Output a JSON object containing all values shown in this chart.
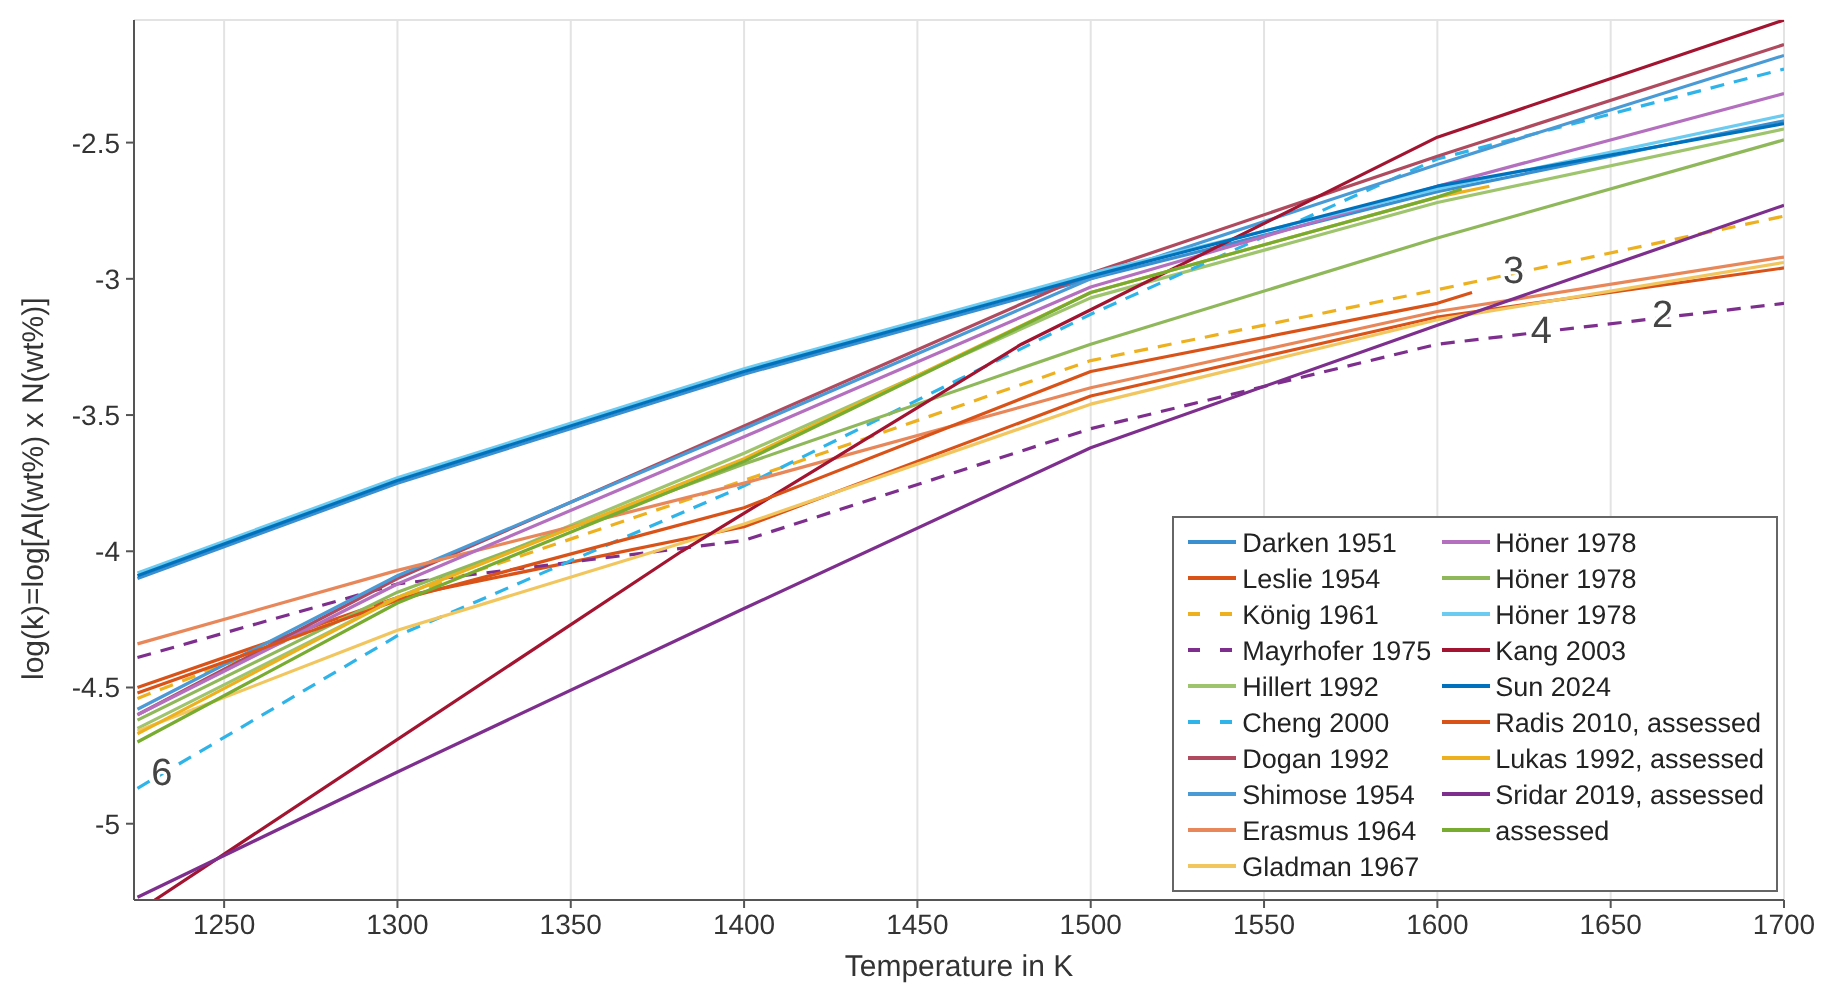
{
  "chart_data": {
    "type": "line",
    "xlabel": "Temperature in K",
    "ylabel": "log(k)=log[Al(wt%) x N(wt%)]",
    "xlim": [
      1224,
      1700
    ],
    "ylim": [
      -5.28,
      -2.05
    ],
    "xticks": [
      1250,
      1300,
      1350,
      1400,
      1450,
      1500,
      1550,
      1600,
      1650,
      1700
    ],
    "yticks": [
      -5,
      -4.5,
      -4,
      -3.5,
      -3,
      -2.5
    ],
    "grid": true,
    "legend": "bottom right",
    "marker": "none",
    "series": [
      {
        "name": "Darken 1951",
        "color": "#3a8fd0",
        "x": [
          1225,
          1300,
          1400,
          1500,
          1600,
          1700
        ],
        "values": [
          -4.1,
          -3.75,
          -3.35,
          -3.0,
          -2.68,
          -2.42
        ]
      },
      {
        "name": "Leslie 1954",
        "color": "#d95319",
        "x": [
          1225,
          1300,
          1400,
          1500,
          1600,
          1700
        ],
        "values": [
          -4.5,
          -4.17,
          -3.91,
          -3.43,
          -3.14,
          -2.96
        ]
      },
      {
        "name": "König 1961",
        "color": "#edb120",
        "line_style": "dashed",
        "x": [
          1225,
          1300,
          1400,
          1500,
          1600,
          1700
        ],
        "values": [
          -4.54,
          -4.17,
          -3.74,
          -3.3,
          -3.04,
          -2.77
        ]
      },
      {
        "name": "Mayrhofer 1975",
        "color": "#7e2f8e",
        "line_style": "dashed",
        "x": [
          1225,
          1300,
          1400,
          1500,
          1600,
          1700
        ],
        "values": [
          -4.39,
          -4.12,
          -3.96,
          -3.55,
          -3.24,
          -3.09
        ]
      },
      {
        "name": "Hillert 1992",
        "color": "#9fc46e",
        "x": [
          1225,
          1300,
          1400,
          1500,
          1600,
          1700
        ],
        "values": [
          -4.65,
          -4.17,
          -3.64,
          -3.07,
          -2.72,
          -2.45
        ]
      },
      {
        "name": "Cheng 2000",
        "color": "#2fb4ea",
        "line_style": "dashed",
        "x": [
          1225,
          1300,
          1400,
          1500,
          1600,
          1700
        ],
        "values": [
          -4.87,
          -4.31,
          -3.76,
          -3.13,
          -2.56,
          -2.23
        ]
      },
      {
        "name": "Dogan 1992",
        "color": "#b04a5e",
        "x": [
          1225,
          1300,
          1400,
          1500,
          1600,
          1700
        ],
        "values": [
          -4.6,
          -4.1,
          -3.54,
          -2.98,
          -2.55,
          -2.14
        ]
      },
      {
        "name": "Shimose 1954",
        "color": "#4a9ad6",
        "x": [
          1225,
          1300,
          1400,
          1500,
          1600,
          1700
        ],
        "values": [
          -4.58,
          -4.09,
          -3.55,
          -3.0,
          -2.58,
          -2.18
        ]
      },
      {
        "name": "Erasmus 1964",
        "color": "#e8875a",
        "x": [
          1225,
          1300,
          1400,
          1500,
          1600,
          1700
        ],
        "values": [
          -4.34,
          -4.07,
          -3.75,
          -3.4,
          -3.12,
          -2.92
        ]
      },
      {
        "name": "Gladman 1967",
        "color": "#f2c65e",
        "x": [
          1225,
          1300,
          1400,
          1500,
          1600,
          1700
        ],
        "values": [
          -4.66,
          -4.29,
          -3.9,
          -3.46,
          -3.15,
          -2.94
        ]
      },
      {
        "name": "Höner 1978",
        "color": "#b46fbf",
        "x": [
          1225,
          1300,
          1400,
          1500,
          1600,
          1700
        ],
        "values": [
          -4.6,
          -4.12,
          -3.58,
          -3.03,
          -2.66,
          -2.32
        ]
      },
      {
        "name": "Höner 1978",
        "color": "#8fb85a",
        "x": [
          1225,
          1300,
          1400,
          1500,
          1600,
          1700
        ],
        "values": [
          -4.62,
          -4.15,
          -3.68,
          -3.24,
          -2.85,
          -2.49
        ]
      },
      {
        "name": "Höner 1978",
        "color": "#6ccbf0",
        "x": [
          1225,
          1300,
          1400,
          1500,
          1600,
          1700
        ],
        "values": [
          -4.08,
          -3.73,
          -3.33,
          -2.98,
          -2.67,
          -2.4
        ]
      },
      {
        "name": "Kang 2003",
        "color": "#a2142f",
        "x": [
          1230,
          1382,
          1480,
          1600,
          1700
        ],
        "values": [
          -5.28,
          -4.0,
          -3.24,
          -2.48,
          -2.05
        ]
      },
      {
        "name": "Sun 2024",
        "color": "#0072bd",
        "x": [
          1225,
          1300,
          1400,
          1500,
          1600,
          1700
        ],
        "values": [
          -4.09,
          -3.74,
          -3.34,
          -2.99,
          -2.66,
          -2.43
        ]
      },
      {
        "name": "Radis 2010, assessed",
        "color": "#d95319",
        "x": [
          1225,
          1300,
          1400,
          1500,
          1600,
          1610
        ],
        "values": [
          -4.52,
          -4.18,
          -3.84,
          -3.34,
          -3.09,
          -3.05
        ]
      },
      {
        "name": "Lukas 1992, assessed",
        "color": "#edb120",
        "x": [
          1225,
          1300,
          1400,
          1500,
          1600,
          1615
        ],
        "values": [
          -4.67,
          -4.17,
          -3.66,
          -3.05,
          -2.7,
          -2.66
        ]
      },
      {
        "name": "Sridar 2019, assessed",
        "color": "#7e2f8e",
        "x": [
          1225,
          1300,
          1400,
          1500,
          1600,
          1700
        ],
        "values": [
          -5.27,
          -4.81,
          -4.21,
          -3.62,
          -3.17,
          -2.73
        ]
      },
      {
        "name": "assessed",
        "color": "#77ac30",
        "x": [
          1225,
          1300,
          1400,
          1500,
          1600,
          1607
        ],
        "values": [
          -4.7,
          -4.19,
          -3.67,
          -3.05,
          -2.7,
          -2.67
        ]
      }
    ],
    "annotations": [
      {
        "text": "3",
        "x": 1622,
        "y": -2.98
      },
      {
        "text": "2",
        "x": 1665,
        "y": -3.14
      },
      {
        "text": "4",
        "x": 1630,
        "y": -3.2
      },
      {
        "text": "6",
        "x": 1232,
        "y": -4.82
      }
    ]
  }
}
